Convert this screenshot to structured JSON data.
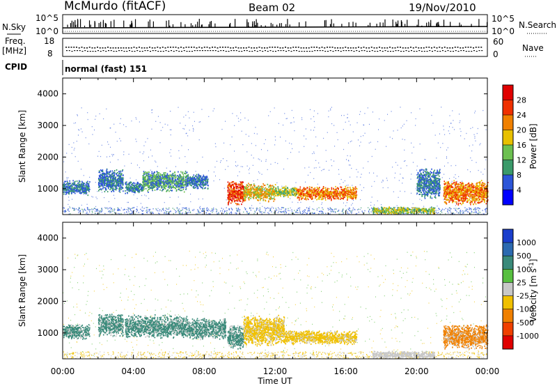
{
  "header": {
    "station": "McMurdo (fitACF)",
    "beam": "Beam 02",
    "date": "19/Nov/2010"
  },
  "top_panel": {
    "left_label": "N.Sky",
    "right_label": "N.Search",
    "tick_hi": "10^5",
    "tick_lo": "10^0",
    "right_tick_hi": "10^5",
    "right_tick_lo": "10^0"
  },
  "freq_panel": {
    "left_label": "Freq.",
    "left_unit": "[MHz]",
    "right_label": "Nave",
    "tick_hi": "18",
    "tick_lo": "8",
    "right_tick_hi": "60",
    "right_tick_lo": "0"
  },
  "cpid": {
    "label": "CPID",
    "value": "normal (fast) 151"
  },
  "power_colorbar": {
    "title": "Power [dB]",
    "ticks": [
      "4",
      "8",
      "12",
      "16",
      "20",
      "24",
      "28"
    ],
    "colors": [
      "#0000ff",
      "#2c55d8",
      "#3a9a6a",
      "#6cc050",
      "#e8c000",
      "#f08000",
      "#f03000",
      "#e00000"
    ]
  },
  "velocity_colorbar": {
    "title": "Velocity [m s^-1]",
    "ticks": [
      "1000",
      "500",
      "100",
      "25",
      "-25",
      "-100",
      "-500",
      "-1000"
    ],
    "colors": [
      "#1a3ecc",
      "#2c6ab0",
      "#3a8a7a",
      "#58c040",
      "#c8c8c8",
      "#f0c000",
      "#f08000",
      "#f04000",
      "#e00000"
    ]
  },
  "chart_data": {
    "type": "heatmap",
    "xlabel": "Time UT",
    "ylabel": "Slant Range [km]",
    "x_ticks": [
      "00:00",
      "04:00",
      "08:00",
      "12:00",
      "16:00",
      "20:00",
      "00:00"
    ],
    "y_ticks": [
      "1000",
      "2000",
      "3000",
      "4000"
    ],
    "x_range_hours": [
      0,
      24
    ],
    "y_range_km": [
      180,
      4500
    ],
    "panels": [
      {
        "name": "Power",
        "units": "dB",
        "echo_regions": [
          {
            "t": [
              0.0,
              1.5
            ],
            "range_km": [
              800,
              1300
            ],
            "level": 8
          },
          {
            "t": [
              2.0,
              3.4
            ],
            "range_km": [
              900,
              1650
            ],
            "level": 8
          },
          {
            "t": [
              3.5,
              4.5
            ],
            "range_km": [
              850,
              1250
            ],
            "level": 10
          },
          {
            "t": [
              4.5,
              7.0
            ],
            "range_km": [
              900,
              1600
            ],
            "level": 12
          },
          {
            "t": [
              7.0,
              8.2
            ],
            "range_km": [
              1000,
              1500
            ],
            "level": 8
          },
          {
            "t": [
              9.3,
              10.2
            ],
            "range_km": [
              500,
              1300
            ],
            "level": 28
          },
          {
            "t": [
              10.2,
              12.0
            ],
            "range_km": [
              600,
              1200
            ],
            "level": 20
          },
          {
            "t": [
              12.0,
              13.2
            ],
            "range_km": [
              750,
              1100
            ],
            "level": 16
          },
          {
            "t": [
              13.2,
              16.6
            ],
            "range_km": [
              650,
              1100
            ],
            "level": 24
          },
          {
            "t": [
              17.5,
              21.0
            ],
            "range_km": [
              200,
              450
            ],
            "level": 16
          },
          {
            "t": [
              20.0,
              21.3
            ],
            "range_km": [
              700,
              1700
            ],
            "level": 8
          },
          {
            "t": [
              21.5,
              24.0
            ],
            "range_km": [
              500,
              1300
            ],
            "level": 24
          }
        ]
      },
      {
        "name": "Velocity",
        "units": "m s^-1",
        "echo_regions": [
          {
            "t": [
              0.0,
              1.5
            ],
            "range_km": [
              800,
              1300
            ],
            "level": 100
          },
          {
            "t": [
              2.0,
              3.4
            ],
            "range_km": [
              900,
              1650
            ],
            "level": 100
          },
          {
            "t": [
              3.5,
              7.0
            ],
            "range_km": [
              850,
              1600
            ],
            "level": 100
          },
          {
            "t": [
              7.0,
              9.2
            ],
            "range_km": [
              800,
              1500
            ],
            "level": 100
          },
          {
            "t": [
              9.3,
              10.2
            ],
            "range_km": [
              500,
              1300
            ],
            "level": 100
          },
          {
            "t": [
              10.2,
              12.5
            ],
            "range_km": [
              600,
              1600
            ],
            "level": -100
          },
          {
            "t": [
              12.5,
              16.6
            ],
            "range_km": [
              650,
              1100
            ],
            "level": -100
          },
          {
            "t": [
              17.5,
              21.0
            ],
            "range_km": [
              200,
              450
            ],
            "level": -25
          },
          {
            "t": [
              21.5,
              24.0
            ],
            "range_km": [
              500,
              1300
            ],
            "level": -500
          }
        ]
      }
    ],
    "colorbars": [
      "Power [dB]",
      "Velocity [m s^-1]"
    ],
    "grid": false
  }
}
